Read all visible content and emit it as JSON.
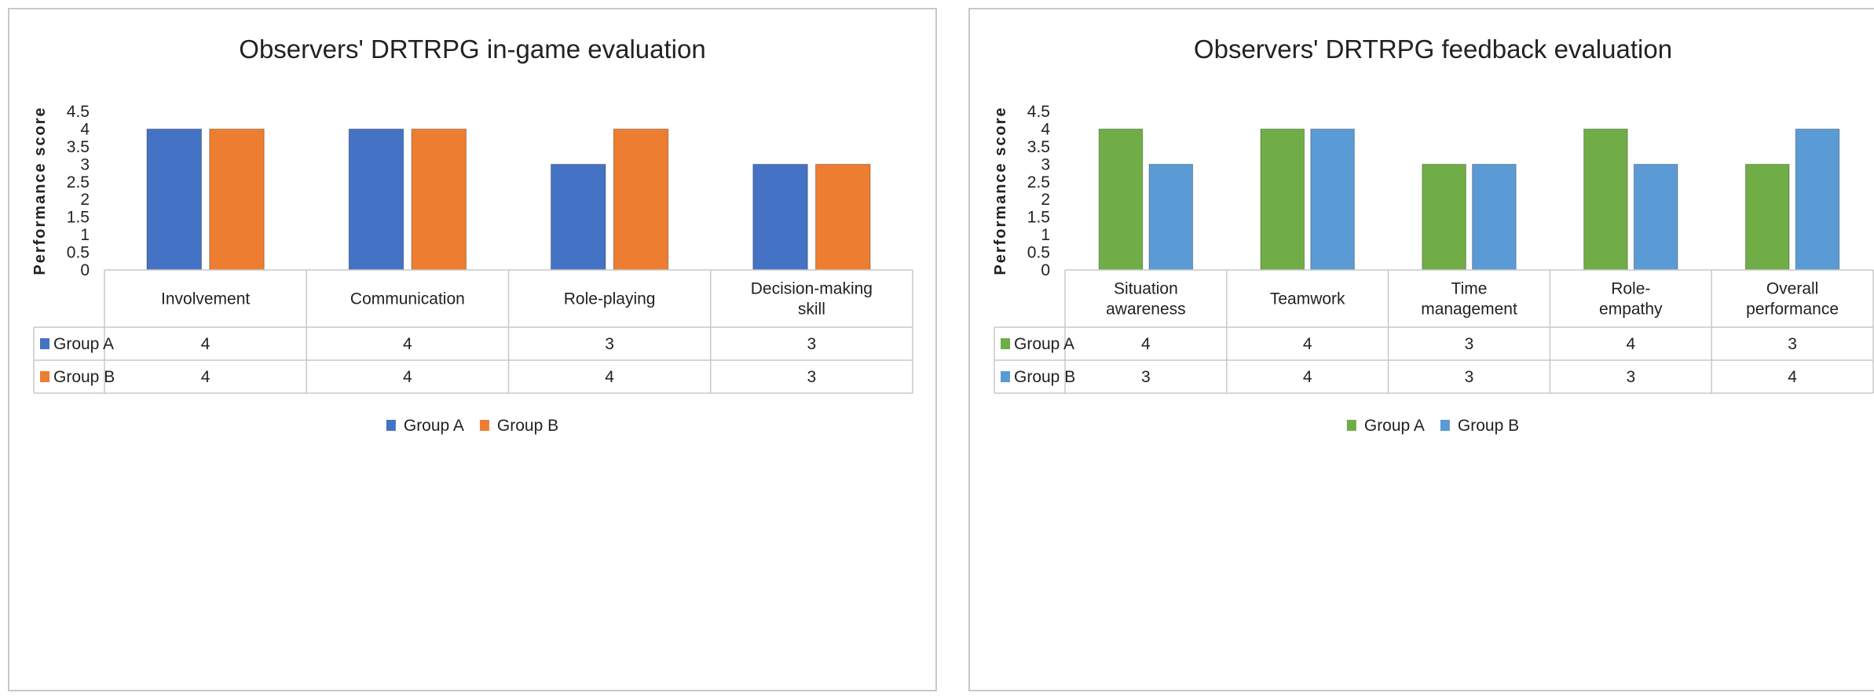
{
  "chart_data": [
    {
      "type": "bar",
      "title": "Observers' DRTRPG in-game evaluation",
      "ylabel": "Performance score",
      "ylim": [
        0,
        4.5
      ],
      "yticks": [
        "0",
        "0.5",
        "1",
        "1.5",
        "2",
        "2.5",
        "3",
        "3.5",
        "4",
        "4.5"
      ],
      "grid": false,
      "legend_position": "bottom",
      "categories": [
        [
          "Involvement"
        ],
        [
          "Communication"
        ],
        [
          "Role-playing"
        ],
        [
          "Decision-making",
          "skill"
        ]
      ],
      "series": [
        {
          "name": "Group A",
          "color": "#4472c4",
          "values": [
            4,
            4,
            3,
            3
          ]
        },
        {
          "name": "Group B",
          "color": "#ed7d31",
          "values": [
            4,
            4,
            4,
            3
          ]
        }
      ]
    },
    {
      "type": "bar",
      "title": "Observers' DRTRPG feedback evaluation",
      "ylabel": "Performance score",
      "ylim": [
        0,
        4.5
      ],
      "yticks": [
        "0",
        "0.5",
        "1",
        "1.5",
        "2",
        "2.5",
        "3",
        "3.5",
        "4",
        "4.5"
      ],
      "grid": false,
      "legend_position": "bottom",
      "categories": [
        [
          "Situation",
          "awareness"
        ],
        [
          "Teamwork"
        ],
        [
          "Time",
          "management"
        ],
        [
          "Role-",
          "empathy"
        ],
        [
          "Overall",
          "performance"
        ]
      ],
      "series": [
        {
          "name": "Group A",
          "color": "#70ad47",
          "values": [
            4,
            4,
            3,
            4,
            3
          ]
        },
        {
          "name": "Group B",
          "color": "#5b9bd5",
          "values": [
            3,
            4,
            3,
            3,
            4
          ]
        }
      ]
    }
  ]
}
